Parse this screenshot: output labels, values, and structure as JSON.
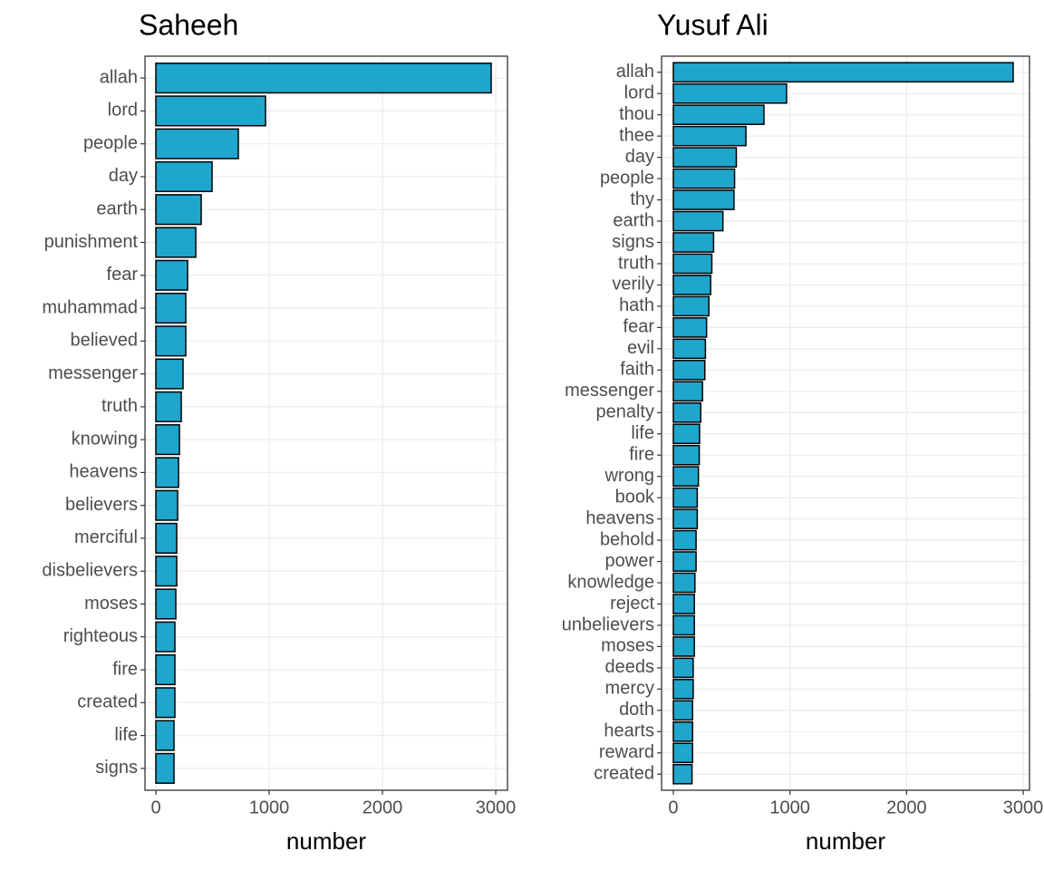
{
  "chart_data": [
    {
      "type": "bar",
      "orientation": "horizontal",
      "title": "Saheeh",
      "xlabel": "number",
      "color": "#1fa6cc",
      "grid": true,
      "categories": [
        "allah",
        "lord",
        "people",
        "day",
        "earth",
        "punishment",
        "fear",
        "muhammad",
        "believed",
        "messenger",
        "truth",
        "knowing",
        "heavens",
        "believers",
        "merciful",
        "disbelievers",
        "moses",
        "righteous",
        "fire",
        "created",
        "life",
        "signs"
      ],
      "values": [
        2960,
        968,
        728,
        496,
        400,
        352,
        280,
        264,
        264,
        240,
        224,
        208,
        200,
        192,
        184,
        184,
        176,
        168,
        168,
        168,
        160,
        160
      ],
      "xlim": [
        -96,
        3104
      ],
      "xticks": [
        0,
        1000,
        2000,
        3000
      ]
    },
    {
      "type": "bar",
      "orientation": "horizontal",
      "title": "Yusuf Ali",
      "xlabel": "number",
      "color": "#1fa6cc",
      "grid": true,
      "categories": [
        "allah",
        "lord",
        "thou",
        "thee",
        "day",
        "people",
        "thy",
        "earth",
        "signs",
        "truth",
        "verily",
        "hath",
        "fear",
        "evil",
        "faith",
        "messenger",
        "penalty",
        "life",
        "fire",
        "wrong",
        "book",
        "heavens",
        "behold",
        "power",
        "knowledge",
        "reject",
        "unbelievers",
        "moses",
        "deeds",
        "mercy",
        "doth",
        "hearts",
        "reward",
        "created"
      ],
      "values": [
        2914,
        971,
        777,
        622,
        540,
        525,
        520,
        425,
        345,
        330,
        320,
        305,
        285,
        275,
        270,
        250,
        235,
        225,
        222,
        215,
        205,
        205,
        195,
        195,
        185,
        180,
        180,
        180,
        170,
        170,
        165,
        165,
        165,
        160
      ],
      "xlim": [
        -101,
        3054
      ],
      "xticks": [
        0,
        1000,
        2000,
        3000
      ]
    }
  ]
}
